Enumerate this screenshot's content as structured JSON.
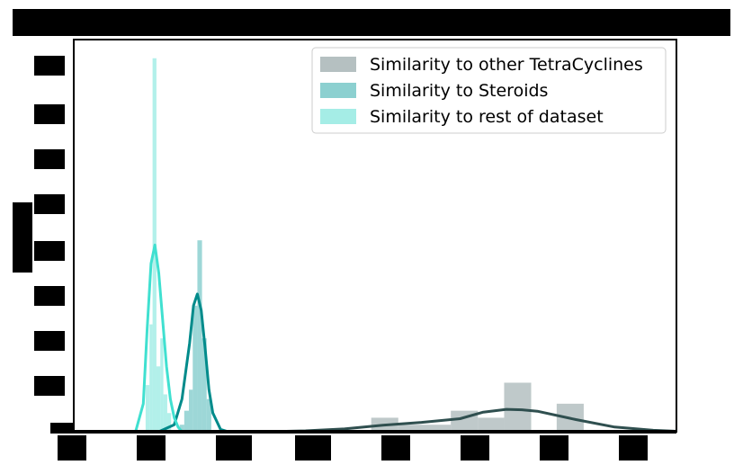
{
  "chart_data": {
    "type": "bar",
    "title": "",
    "xlabel": "",
    "ylabel": "",
    "xlim": [
      0.0,
      0.78
    ],
    "ylim": [
      0,
      8.4
    ],
    "grid": false,
    "legend_position": "top-right",
    "legend": [
      "Similarity to other TetraCyclines",
      "Similarity to Steroids",
      "Similarity to rest of dataset"
    ],
    "series": [
      {
        "name": "Similarity to other TetraCyclines",
        "kind": "histogram",
        "color": "#95a5a6",
        "line_color": "#2f4f4f",
        "bins": [
          {
            "x0": 0.385,
            "x1": 0.42,
            "height": 0.3
          },
          {
            "x0": 0.42,
            "x1": 0.488,
            "height": 0.15
          },
          {
            "x0": 0.488,
            "x1": 0.523,
            "height": 0.45
          },
          {
            "x0": 0.523,
            "x1": 0.557,
            "height": 0.3
          },
          {
            "x0": 0.557,
            "x1": 0.592,
            "height": 1.05
          },
          {
            "x0": 0.625,
            "x1": 0.66,
            "height": 0.6
          }
        ],
        "kde": {
          "x": [
            0.25,
            0.3,
            0.35,
            0.4,
            0.45,
            0.5,
            0.53,
            0.56,
            0.58,
            0.6,
            0.65,
            0.7,
            0.75,
            0.78
          ],
          "y": [
            0.0,
            0.02,
            0.06,
            0.14,
            0.2,
            0.28,
            0.42,
            0.48,
            0.47,
            0.44,
            0.26,
            0.1,
            0.03,
            0.01
          ]
        }
      },
      {
        "name": "Similarity to Steroids",
        "kind": "histogram",
        "color": "#5bbcbc",
        "line_color": "#008b8b",
        "bins": [
          {
            "x0": 0.137,
            "x1": 0.143,
            "height": 0.15
          },
          {
            "x0": 0.143,
            "x1": 0.149,
            "height": 0.45
          },
          {
            "x0": 0.149,
            "x1": 0.154,
            "height": 0.9
          },
          {
            "x0": 0.154,
            "x1": 0.16,
            "height": 2.7
          },
          {
            "x0": 0.16,
            "x1": 0.166,
            "height": 4.1
          },
          {
            "x0": 0.166,
            "x1": 0.172,
            "height": 2.0
          },
          {
            "x0": 0.172,
            "x1": 0.178,
            "height": 0.7
          }
        ],
        "kde": {
          "x": [
            0.11,
            0.13,
            0.14,
            0.15,
            0.155,
            0.16,
            0.165,
            0.17,
            0.175,
            0.18,
            0.19,
            0.2
          ],
          "y": [
            0.0,
            0.15,
            0.7,
            1.9,
            2.7,
            2.95,
            2.6,
            1.8,
            0.9,
            0.4,
            0.05,
            0.0
          ]
        }
      },
      {
        "name": "Similarity to rest of dataset",
        "kind": "histogram",
        "color": "#7fe6dc",
        "line_color": "#40e0d0",
        "bins": [
          {
            "x0": 0.093,
            "x1": 0.098,
            "height": 1.0
          },
          {
            "x0": 0.098,
            "x1": 0.102,
            "height": 2.3
          },
          {
            "x0": 0.102,
            "x1": 0.107,
            "height": 8.0
          },
          {
            "x0": 0.107,
            "x1": 0.112,
            "height": 1.4
          },
          {
            "x0": 0.112,
            "x1": 0.116,
            "height": 2.0
          },
          {
            "x0": 0.116,
            "x1": 0.121,
            "height": 0.8
          },
          {
            "x0": 0.121,
            "x1": 0.126,
            "height": 0.4
          }
        ],
        "kde": {
          "x": [
            0.08,
            0.09,
            0.095,
            0.1,
            0.105,
            0.11,
            0.115,
            0.12,
            0.125,
            0.13,
            0.135,
            0.14
          ],
          "y": [
            0.0,
            0.6,
            2.2,
            3.6,
            4.0,
            3.4,
            2.4,
            1.4,
            0.7,
            0.3,
            0.1,
            0.0
          ]
        }
      }
    ]
  }
}
